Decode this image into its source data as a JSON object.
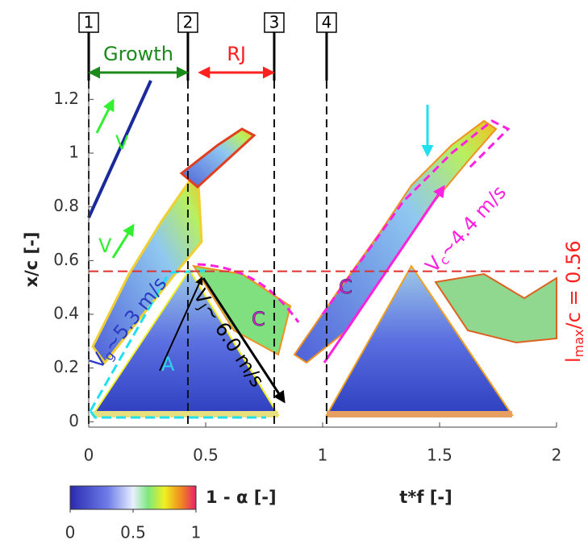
{
  "chart_data": {
    "type": "heatmap",
    "x_label": "t*f [-]",
    "y_label": "x/c [-]",
    "xlim": [
      0,
      2
    ],
    "ylim": [
      -0.02,
      1.27
    ],
    "xticks": [
      0,
      0.5,
      1,
      1.5,
      2
    ],
    "yticks": [
      0,
      0.2,
      0.4,
      0.6,
      0.8,
      1,
      1.2
    ],
    "colorbar": {
      "label": "1 - α [-]",
      "lim": [
        0,
        1
      ],
      "ticks": [
        0,
        0.5,
        1
      ]
    },
    "markers": [
      {
        "label": "1",
        "x": 0
      },
      {
        "label": "2",
        "x": 0.424
      },
      {
        "label": "3",
        "x": 0.793
      },
      {
        "label": "4",
        "x": 1.017
      }
    ],
    "phases": [
      {
        "label": "Growth",
        "from": 0,
        "to": 0.424,
        "color": "#1a8a1a"
      },
      {
        "label": "RJ",
        "from": 0.47,
        "to": 0.793,
        "color": "#ff2020"
      }
    ],
    "reference_line": {
      "value": 0.56,
      "color": "#e03030"
    },
    "annotations": {
      "v_top": "V",
      "v_mid": "V",
      "region_a": "A",
      "region_c1": "C",
      "region_c2": "C",
      "vg": {
        "text": "V",
        "sub": "g",
        "tail": "~5.3 m/s"
      },
      "vj": {
        "text": "V",
        "sub": "J",
        "tail": "~ 6.0 m/s"
      },
      "vc": {
        "text": "V",
        "sub": "c",
        "tail": "~4.4 m/s"
      },
      "lmax": {
        "text": "l",
        "sub": "max",
        "tail": "/c = 0.56"
      }
    }
  }
}
